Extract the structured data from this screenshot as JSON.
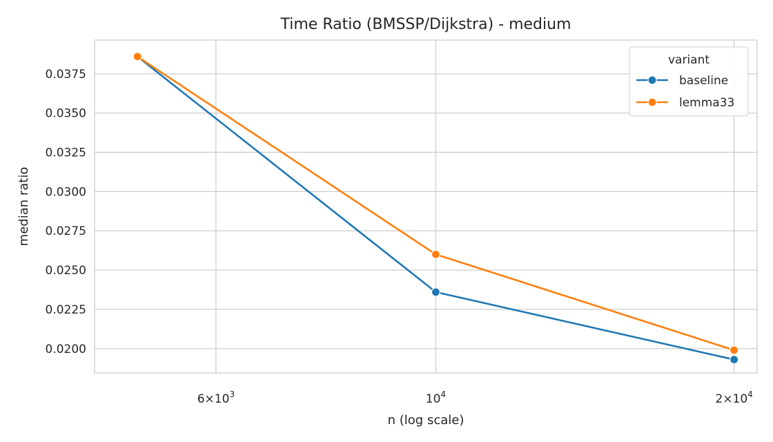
{
  "chart_data": {
    "type": "line",
    "title": "Time Ratio (BMSSP/Dijkstra) - medium",
    "xlabel": "n (log scale)",
    "ylabel": "median ratio",
    "x_scale": "log",
    "x": [
      5000,
      10000,
      20000
    ],
    "xlim": [
      4525,
      21100
    ],
    "x_ticks": [
      {
        "value": 6000,
        "base": "6",
        "exp": "3"
      },
      {
        "value": 10000,
        "base": "",
        "exp": "4"
      },
      {
        "value": 20000,
        "base": "2",
        "exp": "4"
      }
    ],
    "ylim": [
      0.01845,
      0.03965
    ],
    "y_ticks": [
      0.02,
      0.0225,
      0.025,
      0.0275,
      0.03,
      0.0325,
      0.035,
      0.0375
    ],
    "y_tick_labels": [
      "0.0200",
      "0.0225",
      "0.0250",
      "0.0275",
      "0.0300",
      "0.0325",
      "0.0350",
      "0.0375"
    ],
    "grid": true,
    "legend": {
      "title": "variant",
      "placement": "top-right"
    },
    "series": [
      {
        "name": "baseline",
        "color": "#1f77b4",
        "values": [
          0.0386,
          0.0236,
          0.0193
        ]
      },
      {
        "name": "lemma33",
        "color": "#ff7f0e",
        "values": [
          0.0386,
          0.026,
          0.0199
        ]
      }
    ]
  }
}
